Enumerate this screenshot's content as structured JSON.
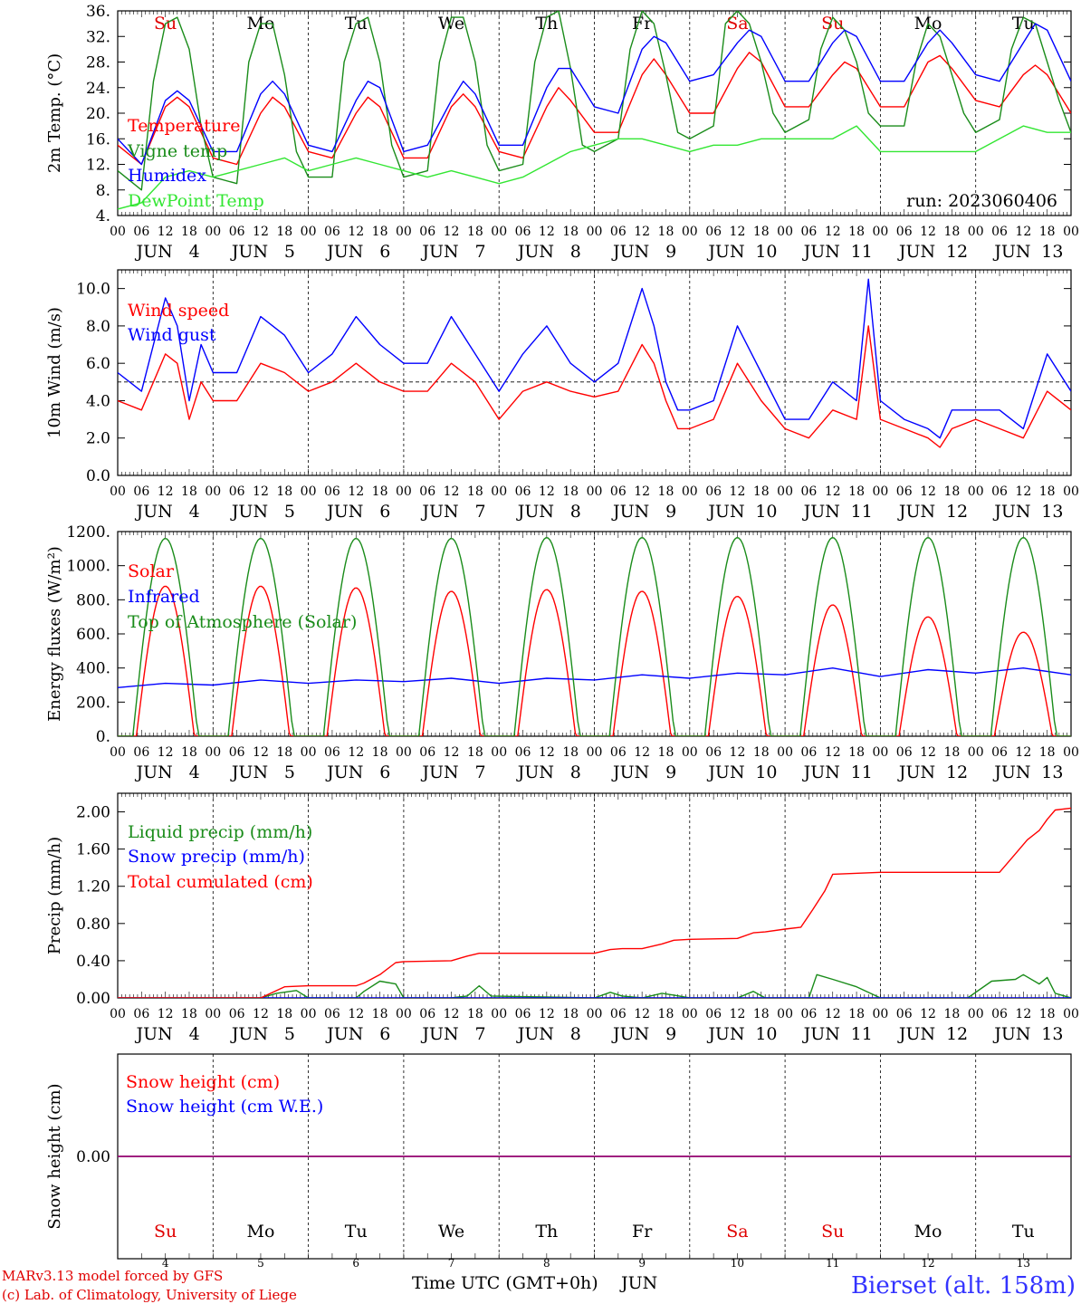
{
  "run_label": "run: 2023060406",
  "credit_lines": [
    "MARv3.13 model forced by GFS",
    "(c) Lab. of Climatology, University of Liege"
  ],
  "station": "Bierset (alt. 158m)",
  "x_axis_label": "Time UTC (GMT+0h)",
  "month": "JUN",
  "days": [
    4,
    5,
    6,
    7,
    8,
    9,
    10,
    11,
    12,
    13
  ],
  "weekdays": [
    "Su",
    "Mo",
    "Tu",
    "We",
    "Th",
    "Fr",
    "Sa",
    "Su",
    "Mo",
    "Tu"
  ],
  "weekday_colors": [
    "#e00000",
    "#000000",
    "#000000",
    "#000000",
    "#000000",
    "#000000",
    "#e00000",
    "#e00000",
    "#000000",
    "#000000"
  ],
  "hour_ticks": [
    "00",
    "06",
    "12",
    "18"
  ],
  "colors": {
    "red": "#ff0000",
    "green": "#1a8c1a",
    "blue": "#0000ff",
    "lightgreen": "#33e633",
    "purple": "#800080",
    "credit": "#e00000",
    "station": "#3333ff"
  },
  "chart_data": [
    {
      "type": "line",
      "id": "temp",
      "ylabel": "2m Temp. (°C)",
      "ylim": [
        4,
        36
      ],
      "yticks": [
        4,
        8,
        12,
        16,
        20,
        24,
        28,
        32,
        36
      ],
      "ytick_labels": [
        "4.",
        "8.",
        "12.",
        "16.",
        "20.",
        "24.",
        "28.",
        "32.",
        "36."
      ],
      "x_units": "hours since JUN 4 00 UTC",
      "xlim": [
        0,
        240
      ],
      "series": [
        {
          "name": "Temperature",
          "color": "red",
          "x": [
            0,
            6,
            12,
            15,
            18,
            24,
            30,
            36,
            39,
            42,
            48,
            54,
            60,
            63,
            66,
            72,
            78,
            84,
            87,
            90,
            96,
            102,
            108,
            111,
            114,
            120,
            126,
            132,
            135,
            138,
            144,
            150,
            156,
            159,
            162,
            168,
            174,
            180,
            183,
            186,
            192,
            198,
            204,
            207,
            210,
            216,
            222,
            228,
            231,
            234,
            240
          ],
          "y": [
            15,
            12,
            21,
            22.5,
            21,
            13,
            12,
            20,
            22.5,
            21,
            14,
            13,
            20,
            22.5,
            21,
            13,
            13,
            21,
            23,
            21,
            14,
            13,
            21,
            24,
            22,
            17,
            17,
            26,
            28.5,
            26,
            20,
            20,
            27,
            29.5,
            28,
            21,
            21,
            26,
            28,
            27,
            21,
            21,
            28,
            29,
            27,
            22,
            21,
            26,
            27.5,
            26,
            20
          ]
        },
        {
          "name": "Vigne temp",
          "color": "green",
          "x": [
            0,
            6,
            9,
            12,
            15,
            18,
            21,
            24,
            30,
            33,
            36,
            39,
            42,
            45,
            48,
            54,
            57,
            60,
            63,
            66,
            69,
            72,
            78,
            81,
            84,
            87,
            90,
            93,
            96,
            102,
            105,
            108,
            111,
            114,
            117,
            120,
            126,
            129,
            132,
            135,
            138,
            141,
            144,
            150,
            153,
            156,
            159,
            162,
            165,
            168,
            174,
            177,
            180,
            183,
            186,
            189,
            192,
            198,
            201,
            204,
            207,
            210,
            213,
            216,
            222,
            225,
            228,
            231,
            234,
            237,
            240
          ],
          "y": [
            11,
            8,
            25,
            34,
            35,
            30,
            18,
            10,
            9,
            28,
            34,
            34,
            26,
            14,
            10,
            10,
            28,
            34,
            35,
            28,
            15,
            10,
            11,
            28,
            35,
            35,
            28,
            15,
            11,
            12,
            28,
            35,
            36,
            27,
            15,
            14,
            16,
            30,
            36,
            34,
            26,
            17,
            16,
            18,
            34,
            36,
            34,
            28,
            20,
            17,
            19,
            30,
            35,
            33,
            28,
            20,
            18,
            18,
            28,
            34,
            32,
            26,
            20,
            17,
            19,
            30,
            35,
            34,
            28,
            22,
            17
          ]
        },
        {
          "name": "Humidex",
          "color": "blue",
          "x": [
            0,
            6,
            12,
            15,
            18,
            24,
            30,
            36,
            39,
            42,
            48,
            54,
            60,
            63,
            66,
            72,
            78,
            84,
            87,
            90,
            96,
            102,
            108,
            111,
            114,
            120,
            126,
            132,
            135,
            138,
            144,
            150,
            156,
            159,
            162,
            168,
            174,
            180,
            183,
            186,
            192,
            198,
            204,
            207,
            210,
            216,
            222,
            228,
            231,
            234,
            240
          ],
          "y": [
            16,
            12,
            22,
            23.5,
            22,
            14,
            14,
            23,
            25,
            23,
            15,
            14,
            22,
            25,
            24,
            14,
            15,
            22,
            25,
            23,
            15,
            15,
            24,
            27,
            27,
            21,
            20,
            30,
            32,
            31,
            25,
            26,
            31,
            33,
            32,
            25,
            25,
            31,
            33,
            32,
            25,
            25,
            31,
            33,
            31,
            26,
            25,
            31,
            34,
            33,
            25
          ]
        },
        {
          "name": "DewPoint Temp",
          "color": "lightgreen",
          "x": [
            0,
            6,
            12,
            18,
            24,
            30,
            36,
            42,
            48,
            54,
            60,
            66,
            72,
            78,
            84,
            90,
            96,
            102,
            108,
            114,
            120,
            126,
            132,
            138,
            144,
            150,
            156,
            162,
            168,
            174,
            180,
            186,
            192,
            198,
            204,
            210,
            216,
            222,
            228,
            234,
            240
          ],
          "y": [
            5,
            6,
            10,
            11,
            10,
            11,
            12,
            13,
            11,
            12,
            13,
            12,
            11,
            10,
            11,
            10,
            9,
            10,
            12,
            14,
            15,
            16,
            16,
            15,
            14,
            15,
            15,
            16,
            16,
            16,
            16,
            18,
            14,
            14,
            14,
            14,
            14,
            16,
            18,
            17,
            17
          ]
        }
      ]
    },
    {
      "type": "line",
      "id": "wind",
      "ylabel": "10m Wind (m/s)",
      "ylim": [
        0,
        11
      ],
      "yticks": [
        0,
        2,
        4,
        6,
        8,
        10
      ],
      "ytick_labels": [
        "0.0",
        "2.0",
        "4.0",
        "6.0",
        "8.0",
        "10.0"
      ],
      "reference_line": 5,
      "xlim": [
        0,
        240
      ],
      "series": [
        {
          "name": "Wind speed",
          "color": "red",
          "x": [
            0,
            6,
            12,
            15,
            18,
            21,
            24,
            30,
            36,
            42,
            48,
            54,
            60,
            66,
            72,
            78,
            84,
            90,
            96,
            102,
            108,
            114,
            120,
            126,
            132,
            135,
            138,
            141,
            144,
            150,
            156,
            162,
            168,
            174,
            180,
            186,
            189,
            192,
            198,
            204,
            207,
            210,
            216,
            222,
            228,
            234,
            240
          ],
          "y": [
            4,
            3.5,
            6.5,
            6,
            3,
            5,
            4,
            4,
            6,
            5.5,
            4.5,
            5,
            6,
            5,
            4.5,
            4.5,
            6,
            5,
            3,
            4.5,
            5,
            4.5,
            4.2,
            4.5,
            7,
            6,
            4,
            2.5,
            2.5,
            3,
            6,
            4,
            2.5,
            2,
            3.5,
            3,
            8,
            3,
            2.5,
            2,
            1.5,
            2.5,
            3,
            2.5,
            2,
            4.5,
            3.5
          ]
        },
        {
          "name": "Wind gust",
          "color": "blue",
          "x": [
            0,
            6,
            12,
            15,
            18,
            21,
            24,
            30,
            36,
            42,
            48,
            54,
            60,
            66,
            72,
            78,
            84,
            90,
            96,
            102,
            108,
            114,
            120,
            126,
            132,
            135,
            138,
            141,
            144,
            150,
            156,
            162,
            168,
            174,
            180,
            186,
            189,
            192,
            198,
            204,
            207,
            210,
            216,
            222,
            228,
            234,
            240
          ],
          "y": [
            5.5,
            4.5,
            9.5,
            8,
            4,
            7,
            5.5,
            5.5,
            8.5,
            7.5,
            5.5,
            6.5,
            8.5,
            7,
            6,
            6,
            8.5,
            6.5,
            4.5,
            6.5,
            8,
            6,
            5,
            6,
            10,
            8,
            5,
            3.5,
            3.5,
            4,
            8,
            5.5,
            3,
            3,
            5,
            4,
            10.5,
            4,
            3,
            2.5,
            2,
            3.5,
            3.5,
            3.5,
            2.5,
            6.5,
            4.5
          ]
        }
      ]
    },
    {
      "type": "line",
      "id": "energy",
      "ylabel": "Energy fluxes (W/m²)",
      "ylim": [
        0,
        1200
      ],
      "yticks": [
        0,
        200,
        400,
        600,
        800,
        1000,
        1200
      ],
      "ytick_labels": [
        "0.",
        "200.",
        "400.",
        "600.",
        "800.",
        "1000.",
        "1200."
      ],
      "xlim": [
        0,
        240
      ],
      "series": [
        {
          "name": "Solar",
          "color": "red",
          "peaks": [
            880,
            880,
            870,
            850,
            860,
            850,
            820,
            770,
            700,
            610
          ]
        },
        {
          "name": "Infrared",
          "color": "blue",
          "x": [
            0,
            12,
            24,
            36,
            48,
            60,
            72,
            84,
            96,
            108,
            120,
            132,
            144,
            156,
            168,
            180,
            192,
            204,
            216,
            228,
            240
          ],
          "y": [
            285,
            310,
            300,
            330,
            310,
            330,
            320,
            340,
            310,
            340,
            330,
            360,
            340,
            370,
            360,
            400,
            350,
            390,
            370,
            400,
            360
          ]
        },
        {
          "name": "Top of Atmosphere (Solar)",
          "color": "green",
          "peaks": [
            1160,
            1160,
            1160,
            1160,
            1165,
            1165,
            1165,
            1165,
            1165,
            1165
          ]
        }
      ]
    },
    {
      "type": "line",
      "id": "precip",
      "ylabel": "Precip (mm/h)",
      "ylim": [
        0,
        2.2
      ],
      "yticks": [
        0,
        0.4,
        0.8,
        1.2,
        1.6,
        2.0
      ],
      "ytick_labels": [
        "0.00",
        "0.40",
        "0.80",
        "1.20",
        "1.60",
        "2.00"
      ],
      "xlim": [
        0,
        240
      ],
      "series": [
        {
          "name": "Liquid precip (mm/h)",
          "color": "green",
          "x": [
            0,
            36,
            40,
            45,
            48,
            60,
            62,
            66,
            70,
            72,
            84,
            88,
            91,
            94,
            120,
            124,
            127,
            132,
            137,
            140,
            144,
            156,
            160,
            163,
            168,
            174,
            176,
            180,
            186,
            192,
            198,
            204,
            208,
            214,
            220,
            226,
            228,
            232,
            234,
            236,
            240
          ],
          "y": [
            0,
            0,
            0.05,
            0.08,
            0,
            0,
            0.07,
            0.18,
            0.15,
            0,
            0,
            0.02,
            0.13,
            0.02,
            0,
            0.06,
            0.02,
            0,
            0.05,
            0.03,
            0,
            0,
            0.07,
            0,
            0,
            0,
            0.25,
            0.2,
            0.12,
            0,
            0,
            0,
            0,
            0,
            0.18,
            0.2,
            0.25,
            0.15,
            0.22,
            0.05,
            0
          ]
        },
        {
          "name": "Snow precip (mm/h)",
          "color": "blue",
          "x": [
            0,
            240
          ],
          "y": [
            0,
            0
          ]
        },
        {
          "name": "Total cumulated (cm)",
          "color": "red",
          "x": [
            0,
            36,
            42,
            48,
            60,
            62,
            66,
            70,
            72,
            84,
            88,
            91,
            94,
            120,
            124,
            127,
            132,
            137,
            140,
            144,
            156,
            160,
            163,
            168,
            172,
            175,
            178,
            180,
            192,
            204,
            216,
            222,
            226,
            229,
            232,
            234,
            236,
            240
          ],
          "y": [
            0,
            0,
            0.12,
            0.13,
            0.13,
            0.16,
            0.25,
            0.38,
            0.39,
            0.4,
            0.45,
            0.48,
            0.48,
            0.48,
            0.52,
            0.53,
            0.53,
            0.58,
            0.62,
            0.63,
            0.64,
            0.7,
            0.71,
            0.74,
            0.76,
            0.95,
            1.15,
            1.33,
            1.35,
            1.35,
            1.35,
            1.35,
            1.55,
            1.7,
            1.8,
            1.92,
            2.02,
            2.04
          ]
        }
      ]
    },
    {
      "type": "line",
      "id": "snow",
      "ylabel": "Snow height (cm)",
      "ylim": [
        -1,
        1
      ],
      "yticks": [
        0
      ],
      "ytick_labels": [
        "0.00"
      ],
      "xlim": [
        0,
        240
      ],
      "series": [
        {
          "name": "Snow height (cm)",
          "color": "red",
          "x": [
            0,
            240
          ],
          "y": [
            0,
            0
          ]
        },
        {
          "name": "Snow height (cm W.E.)",
          "color": "blue",
          "x": [
            0,
            240
          ],
          "y": [
            0,
            0
          ]
        }
      ]
    }
  ]
}
